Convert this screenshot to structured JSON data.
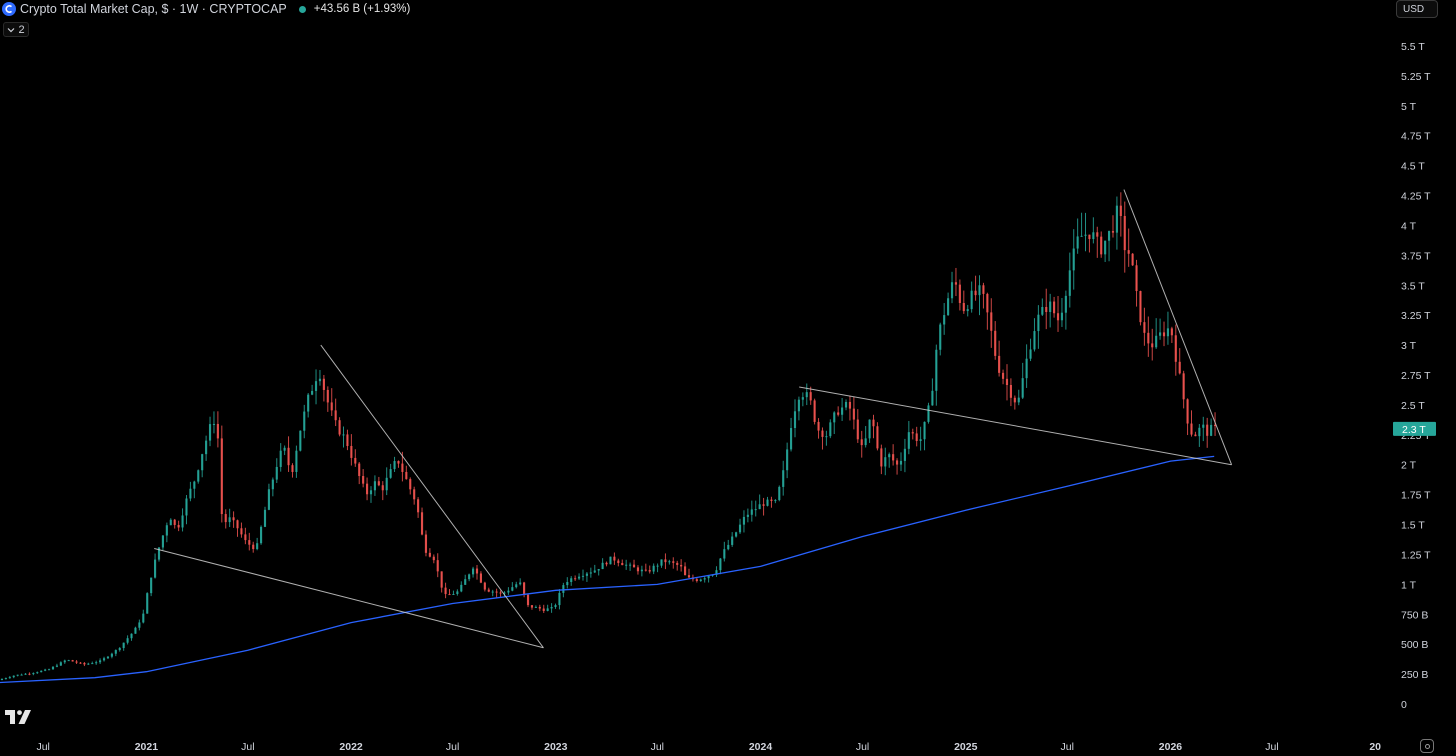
{
  "header": {
    "title": "Crypto Total Market Cap, $ · 1W · CRYPTOCAP",
    "change": "+43.56 B (+1.93%)",
    "status_color": "#26a69a"
  },
  "indicator_toggle": {
    "label": "2",
    "icon": "chevron-down-icon"
  },
  "currency_button": {
    "label": "USD"
  },
  "price_badge": {
    "label": "2.3 T",
    "color": "#26a69a"
  },
  "colors": {
    "up": "#26a69a",
    "down": "#ef5350",
    "moving_average": "#2962ff",
    "trendline": "#cfcfcf",
    "background": "#000000"
  },
  "chart_data": {
    "type": "candlestick",
    "interval": "1W",
    "y_ticks": [
      {
        "label": "5.5 T",
        "value": 5.5
      },
      {
        "label": "5.25 T",
        "value": 5.25
      },
      {
        "label": "5 T",
        "value": 5.0
      },
      {
        "label": "4.75 T",
        "value": 4.75
      },
      {
        "label": "4.5 T",
        "value": 4.5
      },
      {
        "label": "4.25 T",
        "value": 4.25
      },
      {
        "label": "4 T",
        "value": 4.0
      },
      {
        "label": "3.75 T",
        "value": 3.75
      },
      {
        "label": "3.5 T",
        "value": 3.5
      },
      {
        "label": "3.25 T",
        "value": 3.25
      },
      {
        "label": "3 T",
        "value": 3.0
      },
      {
        "label": "2.75 T",
        "value": 2.75
      },
      {
        "label": "2.5 T",
        "value": 2.5
      },
      {
        "label": "2.25 T",
        "value": 2.25
      },
      {
        "label": "2 T",
        "value": 2.0
      },
      {
        "label": "1.75 T",
        "value": 1.75
      },
      {
        "label": "1.5 T",
        "value": 1.5
      },
      {
        "label": "1.25 T",
        "value": 1.25
      },
      {
        "label": "1 T",
        "value": 1.0
      },
      {
        "label": "750 B",
        "value": 0.75
      },
      {
        "label": "500 B",
        "value": 0.5
      },
      {
        "label": "250 B",
        "value": 0.25
      },
      {
        "label": "0",
        "value": 0
      }
    ],
    "ylim": [
      -0.25,
      5.75
    ],
    "y_unit": "trillion USD",
    "x_ticks": [
      {
        "label": "Jul",
        "date": "2020-07-01"
      },
      {
        "label": "2021",
        "date": "2021-01-01",
        "bold": true
      },
      {
        "label": "Jul",
        "date": "2021-07-01"
      },
      {
        "label": "2022",
        "date": "2022-01-01",
        "bold": true
      },
      {
        "label": "Jul",
        "date": "2022-07-01"
      },
      {
        "label": "2023",
        "date": "2023-01-01",
        "bold": true
      },
      {
        "label": "Jul",
        "date": "2023-07-01"
      },
      {
        "label": "2024",
        "date": "2024-01-01",
        "bold": true
      },
      {
        "label": "Jul",
        "date": "2024-07-01"
      },
      {
        "label": "2025",
        "date": "2025-01-01",
        "bold": true
      },
      {
        "label": "Jul",
        "date": "2025-07-01"
      },
      {
        "label": "2026",
        "date": "2026-01-01",
        "bold": true
      },
      {
        "label": "Jul",
        "date": "2026-07-01"
      },
      {
        "label": "20",
        "date": "2027-01-01",
        "bold": true
      }
    ],
    "xlim": [
      "2020-04-15",
      "2027-01-31"
    ],
    "current_value": 2.3,
    "price_path": [
      [
        "2020-04-15",
        0.2
      ],
      [
        "2020-05-15",
        0.24
      ],
      [
        "2020-06-15",
        0.26
      ],
      [
        "2020-07-15",
        0.29
      ],
      [
        "2020-08-15",
        0.37
      ],
      [
        "2020-09-15",
        0.33
      ],
      [
        "2020-10-15",
        0.36
      ],
      [
        "2020-11-15",
        0.46
      ],
      [
        "2020-12-15",
        0.62
      ],
      [
        "2020-12-31",
        0.76
      ],
      [
        "2021-01-10",
        1.02
      ],
      [
        "2021-01-25",
        1.28
      ],
      [
        "2021-02-15",
        1.58
      ],
      [
        "2021-02-28",
        1.45
      ],
      [
        "2021-03-15",
        1.68
      ],
      [
        "2021-04-01",
        1.88
      ],
      [
        "2021-04-15",
        2.12
      ],
      [
        "2021-05-01",
        2.35
      ],
      [
        "2021-05-10",
        2.4
      ],
      [
        "2021-05-20",
        1.5
      ],
      [
        "2021-06-01",
        1.55
      ],
      [
        "2021-06-15",
        1.48
      ],
      [
        "2021-07-01",
        1.35
      ],
      [
        "2021-07-20",
        1.3
      ],
      [
        "2021-08-10",
        1.75
      ],
      [
        "2021-08-25",
        2.0
      ],
      [
        "2021-09-06",
        2.15
      ],
      [
        "2021-09-20",
        1.92
      ],
      [
        "2021-10-05",
        2.28
      ],
      [
        "2021-10-20",
        2.55
      ],
      [
        "2021-11-08",
        2.8
      ],
      [
        "2021-11-22",
        2.55
      ],
      [
        "2021-12-06",
        2.35
      ],
      [
        "2021-12-27",
        2.2
      ],
      [
        "2022-01-15",
        1.95
      ],
      [
        "2022-01-31",
        1.75
      ],
      [
        "2022-02-15",
        1.85
      ],
      [
        "2022-03-01",
        1.8
      ],
      [
        "2022-03-28",
        2.05
      ],
      [
        "2022-04-15",
        1.85
      ],
      [
        "2022-05-01",
        1.68
      ],
      [
        "2022-05-15",
        1.3
      ],
      [
        "2022-06-01",
        1.22
      ],
      [
        "2022-06-20",
        0.9
      ],
      [
        "2022-07-15",
        0.94
      ],
      [
        "2022-08-10",
        1.15
      ],
      [
        "2022-09-01",
        0.96
      ],
      [
        "2022-10-01",
        0.92
      ],
      [
        "2022-11-01",
        1.02
      ],
      [
        "2022-11-15",
        0.82
      ],
      [
        "2022-12-15",
        0.79
      ],
      [
        "2023-01-01",
        0.8
      ],
      [
        "2023-01-20",
        1.02
      ],
      [
        "2023-02-15",
        1.08
      ],
      [
        "2023-03-15",
        1.12
      ],
      [
        "2023-04-15",
        1.22
      ],
      [
        "2023-05-15",
        1.15
      ],
      [
        "2023-06-15",
        1.1
      ],
      [
        "2023-07-15",
        1.2
      ],
      [
        "2023-08-15",
        1.15
      ],
      [
        "2023-08-25",
        1.05
      ],
      [
        "2023-09-15",
        1.04
      ],
      [
        "2023-10-15",
        1.1
      ],
      [
        "2023-10-28",
        1.25
      ],
      [
        "2023-11-15",
        1.38
      ],
      [
        "2023-12-10",
        1.58
      ],
      [
        "2024-01-10",
        1.68
      ],
      [
        "2024-02-01",
        1.68
      ],
      [
        "2024-02-15",
        1.95
      ],
      [
        "2024-03-01",
        2.4
      ],
      [
        "2024-03-15",
        2.62
      ],
      [
        "2024-04-01",
        2.55
      ],
      [
        "2024-04-15",
        2.3
      ],
      [
        "2024-05-01",
        2.25
      ],
      [
        "2024-05-20",
        2.45
      ],
      [
        "2024-06-10",
        2.5
      ],
      [
        "2024-07-05",
        2.1
      ],
      [
        "2024-07-20",
        2.42
      ],
      [
        "2024-08-05",
        2.0
      ],
      [
        "2024-08-20",
        2.08
      ],
      [
        "2024-09-07",
        1.98
      ],
      [
        "2024-09-25",
        2.28
      ],
      [
        "2024-10-15",
        2.2
      ],
      [
        "2024-10-28",
        2.4
      ],
      [
        "2024-11-05",
        2.62
      ],
      [
        "2024-11-15",
        3.05
      ],
      [
        "2024-12-01",
        3.35
      ],
      [
        "2024-12-15",
        3.55
      ],
      [
        "2024-12-30",
        3.3
      ],
      [
        "2025-01-15",
        3.4
      ],
      [
        "2025-02-01",
        3.45
      ],
      [
        "2025-02-15",
        3.2
      ],
      [
        "2025-03-01",
        2.85
      ],
      [
        "2025-03-15",
        2.7
      ],
      [
        "2025-04-07",
        2.5
      ],
      [
        "2025-04-25",
        2.92
      ],
      [
        "2025-05-10",
        3.2
      ],
      [
        "2025-06-01",
        3.35
      ],
      [
        "2025-06-20",
        3.2
      ],
      [
        "2025-07-10",
        3.65
      ],
      [
        "2025-07-25",
        3.9
      ],
      [
        "2025-08-15",
        3.95
      ],
      [
        "2025-09-01",
        3.8
      ],
      [
        "2025-09-20",
        3.95
      ],
      [
        "2025-10-05",
        4.15
      ],
      [
        "2025-10-12",
        3.85
      ],
      [
        "2025-10-25",
        3.75
      ],
      [
        "2025-11-05",
        3.4
      ],
      [
        "2025-11-20",
        3.05
      ],
      [
        "2025-12-05",
        3.0
      ],
      [
        "2025-12-20",
        3.1
      ],
      [
        "2026-01-05",
        3.15
      ],
      [
        "2026-01-20",
        2.75
      ],
      [
        "2026-02-01",
        2.45
      ],
      [
        "2026-02-08",
        2.28
      ],
      [
        "2026-02-20",
        2.25
      ],
      [
        "2026-03-01",
        2.33
      ],
      [
        "2026-03-10",
        2.27
      ],
      [
        "2026-03-20",
        2.3
      ]
    ],
    "moving_average": [
      [
        "2020-04-15",
        0.18
      ],
      [
        "2020-10-01",
        0.22
      ],
      [
        "2021-01-01",
        0.27
      ],
      [
        "2021-07-01",
        0.45
      ],
      [
        "2022-01-01",
        0.68
      ],
      [
        "2022-07-01",
        0.84
      ],
      [
        "2023-01-01",
        0.95
      ],
      [
        "2023-07-01",
        1.0
      ],
      [
        "2024-01-01",
        1.15
      ],
      [
        "2024-07-01",
        1.4
      ],
      [
        "2025-01-01",
        1.62
      ],
      [
        "2025-07-01",
        1.82
      ],
      [
        "2026-01-01",
        2.03
      ],
      [
        "2026-03-20",
        2.07
      ]
    ],
    "trendlines": [
      {
        "from": [
          "2021-01-15",
          1.3
        ],
        "to": [
          "2022-12-10",
          0.47
        ]
      },
      {
        "from": [
          "2021-11-08",
          3.0
        ],
        "to": [
          "2022-12-10",
          0.47
        ]
      },
      {
        "from": [
          "2024-03-10",
          2.65
        ],
        "to": [
          "2026-04-20",
          2.0
        ]
      },
      {
        "from": [
          "2025-10-10",
          4.3
        ],
        "to": [
          "2026-04-20",
          2.0
        ]
      }
    ]
  }
}
